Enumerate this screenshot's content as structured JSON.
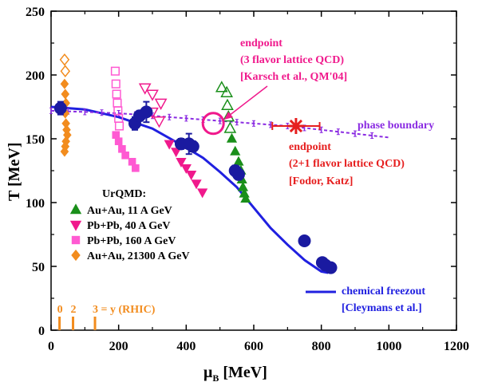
{
  "chart_data": {
    "type": "scatter",
    "title": "",
    "xlabel_main": "μ",
    "xlabel_sub": "B",
    "xlabel_unit": " [MeV]",
    "ylabel": "T [MeV]",
    "xlim": [
      0,
      1200
    ],
    "ylim": [
      0,
      250
    ],
    "x_ticks": [
      0,
      200,
      400,
      600,
      800,
      1000,
      1200
    ],
    "y_ticks": [
      0,
      50,
      100,
      150,
      200,
      250
    ],
    "colors": {
      "green": "#1a8f1a",
      "magenta": "#f0198c",
      "pink": "#ff5ad2",
      "orange": "#f28c1e",
      "navy": "#1a1aa0",
      "blue": "#2020e0",
      "purple": "#8a2be2",
      "red": "#e61e1e"
    },
    "legend": {
      "title": "UrQMD:",
      "entries": [
        {
          "label": "Au+Au, 11 A GeV",
          "marker": "triangle-up",
          "color": "green"
        },
        {
          "label": "Pb+Pb, 40 A GeV",
          "marker": "triangle-down",
          "color": "magenta"
        },
        {
          "label": "Pb+Pb, 160 A GeV",
          "marker": "square",
          "color": "pink"
        },
        {
          "label": "Au+Au, 21300 A GeV",
          "marker": "diamond",
          "color": "orange"
        }
      ]
    },
    "series": [
      {
        "marker": "triangle-up",
        "color": "green",
        "filled": true,
        "points": [
          [
            535,
            150
          ],
          [
            545,
            140
          ],
          [
            555,
            132
          ],
          [
            562,
            125
          ],
          [
            565,
            118
          ],
          [
            568,
            112
          ],
          [
            572,
            107
          ],
          [
            576,
            103
          ]
        ]
      },
      {
        "marker": "triangle-up",
        "color": "green",
        "filled": false,
        "points": [
          [
            505,
            190
          ],
          [
            520,
            186
          ],
          [
            522,
            176
          ],
          [
            525,
            167
          ],
          [
            530,
            158
          ]
        ]
      },
      {
        "marker": "triangle-down",
        "color": "magenta",
        "filled": true,
        "points": [
          [
            350,
            146
          ],
          [
            370,
            140
          ],
          [
            385,
            132
          ],
          [
            400,
            127
          ],
          [
            415,
            122
          ],
          [
            430,
            115
          ],
          [
            448,
            108
          ]
        ]
      },
      {
        "marker": "triangle-down",
        "color": "magenta",
        "filled": false,
        "points": [
          [
            278,
            190
          ],
          [
            300,
            185
          ],
          [
            325,
            178
          ],
          [
            300,
            171
          ],
          [
            320,
            164
          ]
        ]
      },
      {
        "marker": "square",
        "color": "pink",
        "filled": true,
        "points": [
          [
            192,
            153
          ],
          [
            200,
            148
          ],
          [
            210,
            142
          ],
          [
            220,
            137
          ],
          [
            240,
            132
          ],
          [
            250,
            127
          ]
        ]
      },
      {
        "marker": "square",
        "color": "pink",
        "filled": false,
        "points": [
          [
            190,
            203
          ],
          [
            192,
            193
          ],
          [
            194,
            185
          ],
          [
            196,
            178
          ],
          [
            198,
            172
          ],
          [
            200,
            166
          ],
          [
            202,
            160
          ]
        ]
      },
      {
        "marker": "diamond",
        "color": "orange",
        "filled": true,
        "points": [
          [
            40,
            193
          ],
          [
            42,
            185
          ],
          [
            44,
            178
          ],
          [
            42,
            170
          ],
          [
            44,
            162
          ],
          [
            46,
            157
          ],
          [
            48,
            153
          ],
          [
            44,
            148
          ],
          [
            42,
            144
          ],
          [
            40,
            140
          ]
        ]
      },
      {
        "marker": "diamond",
        "color": "orange",
        "filled": false,
        "points": [
          [
            40,
            212
          ],
          [
            42,
            203
          ]
        ]
      }
    ],
    "freezeout_data": [
      {
        "x": 28,
        "y": 174,
        "err": 5
      },
      {
        "x": 248,
        "y": 162,
        "err": 5
      },
      {
        "x": 262,
        "y": 168,
        "err": 4
      },
      {
        "x": 282,
        "y": 171,
        "err": 8
      },
      {
        "x": 385,
        "y": 146,
        "err": 4
      },
      {
        "x": 408,
        "y": 146,
        "err": 8
      },
      {
        "x": 420,
        "y": 144,
        "err": 4
      },
      {
        "x": 545,
        "y": 125,
        "err": 4
      },
      {
        "x": 555,
        "y": 122,
        "err": 4
      },
      {
        "x": 750,
        "y": 70,
        "err": 0
      },
      {
        "x": 803,
        "y": 53,
        "err": 0
      },
      {
        "x": 812,
        "y": 51,
        "err": 0
      },
      {
        "x": 828,
        "y": 49,
        "err": 0
      }
    ],
    "chemical_freezeout_curve": [
      [
        0,
        175
      ],
      [
        100,
        173
      ],
      [
        200,
        167
      ],
      [
        300,
        158
      ],
      [
        400,
        143
      ],
      [
        450,
        135
      ],
      [
        500,
        124
      ],
      [
        550,
        112
      ],
      [
        600,
        96
      ],
      [
        650,
        80
      ],
      [
        700,
        67
      ],
      [
        750,
        55
      ],
      [
        800,
        46
      ],
      [
        820,
        45
      ]
    ],
    "phase_boundary": {
      "points": [
        [
          0,
          172
        ],
        [
          100,
          171
        ],
        [
          200,
          170
        ],
        [
          300,
          168
        ],
        [
          400,
          166
        ],
        [
          500,
          164
        ],
        [
          600,
          162
        ],
        [
          700,
          160
        ],
        [
          800,
          157
        ],
        [
          900,
          154
        ],
        [
          1000,
          151
        ]
      ],
      "error_x": [
        0,
        50,
        100,
        150,
        200,
        250,
        300,
        350,
        400,
        450,
        500,
        550,
        600,
        650,
        700,
        750,
        800,
        850,
        900,
        950
      ]
    },
    "endpoint_3flavor": {
      "x": 480,
      "y": 162
    },
    "endpoint_2plus1": {
      "x": 725,
      "y": 160
    },
    "rhic_ticks": [
      {
        "x": 25,
        "label": "0"
      },
      {
        "x": 65,
        "label": "2"
      },
      {
        "x": 130,
        "label": "3 = y (RHIC)"
      }
    ],
    "annotations": {
      "endpoint3": [
        "endpoint",
        "(3 flavor lattice QCD)",
        "[Karsch et al., QM'04]"
      ],
      "endpoint21": [
        "endpoint",
        "(2+1 flavor lattice QCD)",
        "[Fodor, Katz]"
      ],
      "phase_boundary": "phase boundary",
      "chem_freezeout": [
        "chemical freezout",
        "[Cleymans et al.]"
      ]
    }
  }
}
